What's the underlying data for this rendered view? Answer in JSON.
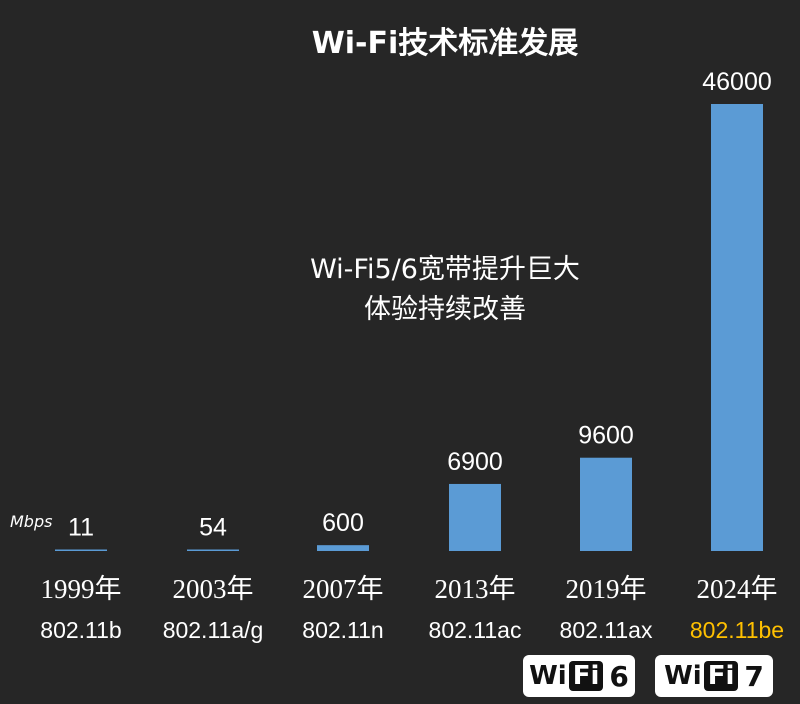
{
  "chart_data": {
    "type": "bar",
    "title": "Wi-Fi技术标准发展",
    "unit_label": "Mbps",
    "categories": [
      "1999年",
      "2003年",
      "2007年",
      "2013年",
      "2019年",
      "2024年"
    ],
    "standards": [
      "802.11b",
      "802.11a/g",
      "802.11n",
      "802.11ac",
      "802.11ax",
      "802.11be"
    ],
    "values": [
      11,
      54,
      600,
      6900,
      9600,
      46000
    ],
    "annotation": [
      "Wi-Fi5/6宽带提升巨大",
      "体验持续改善"
    ],
    "ylim": [
      0,
      46000
    ],
    "colors": {
      "bar": "#5b9bd5",
      "text": "#ffffff",
      "highlight": "#ffc000",
      "background": "#262626"
    },
    "highlight_index": 5
  },
  "logos": [
    {
      "left": "Wi",
      "mid": "Fi",
      "right": "6"
    },
    {
      "left": "Wi",
      "mid": "Fi",
      "right": "7"
    }
  ]
}
